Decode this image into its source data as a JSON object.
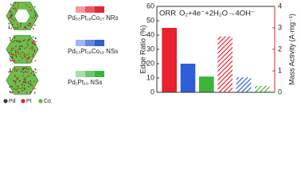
{
  "chart_data": {
    "type": "bar",
    "categories": [
      "Pd₅₅Pt₁₈Co₂₇ NRs",
      "Pd₆₃Pt₁₈Co₁₉ NSs",
      "Pd₁Pt₁₀ NSs"
    ],
    "elements": [
      "Pd",
      "Pt",
      "Co"
    ],
    "element_colors": [
      "#3a3a3a",
      "#d42a2a",
      "#5cb83a"
    ],
    "annotations": [
      "ORR",
      "O₂+4e⁻+2H₂O→4OH⁻"
    ],
    "ylabel": "Edge Ratio (%)",
    "y2label": "Mass Activity (A·mg⁻¹)",
    "ylim": [
      0,
      60
    ],
    "yticks": [
      0,
      10,
      20,
      30,
      40,
      50,
      60
    ],
    "y2lim": [
      0,
      4
    ],
    "y2ticks": [
      0,
      1,
      2,
      3,
      4
    ],
    "y2color": "#e0242e",
    "series": [
      {
        "colors": [
          "#e8212e",
          "#2e5fd6",
          "#3cb43c"
        ],
        "values": [
          45,
          20,
          11
        ]
      },
      {
        "colors": [
          "#e8212e",
          "#2e5fd6",
          "#3cb43c"
        ],
        "values": [
          2.6,
          0.7,
          0.3
        ],
        "axis": "y2",
        "hatch": true
      }
    ]
  }
}
